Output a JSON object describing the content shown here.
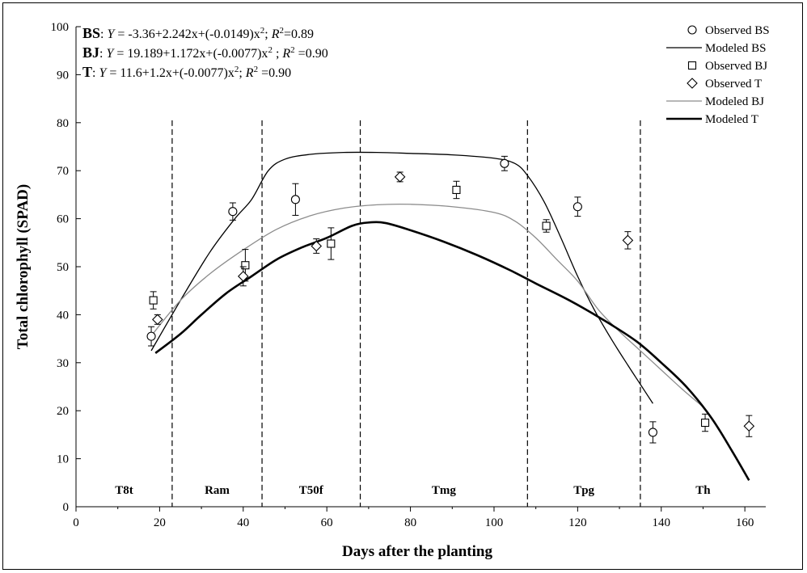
{
  "chart_data": {
    "type": "scatter",
    "xlabel": "Days after the planting",
    "ylabel": "Total chlorophyll  (SPAD)",
    "xlim": [
      0,
      165
    ],
    "ylim": [
      0,
      100
    ],
    "xticks": [
      0,
      20,
      40,
      60,
      80,
      100,
      120,
      140,
      160
    ],
    "yticks": [
      0,
      10,
      20,
      30,
      40,
      50,
      60,
      70,
      80,
      90,
      100
    ],
    "grid": false,
    "legend_position": "top-right",
    "equations": [
      {
        "label": "BS",
        "sep": ":",
        "pre": " ",
        "y": "Y",
        "rhs": " = -3.36+2.242x+(-0.0149)x",
        "sq": "2",
        "mid": ";  ",
        "r": "R",
        "r2": "2",
        "rval": "=0.89"
      },
      {
        "label": "BJ",
        "sep": ":",
        "pre": " ",
        "y": "Y",
        "rhs": " = 19.189+1.172x+(-0.0077)x",
        "sq": "2",
        "mid": "  ; ",
        "r": "R",
        "r2": "2",
        "rval": " =0.90"
      },
      {
        "label": "T",
        "sep": ":",
        "pre": " ",
        "y": "Y",
        "rhs": " = 11.6+1.2x+(-0.0077)x",
        "sq": "2",
        "mid": ";  ",
        "r": "R",
        "r2": "2",
        "rval": " =0.90"
      }
    ],
    "stages": [
      {
        "label": "T8t",
        "start": 0,
        "end": 23
      },
      {
        "label": "Ram",
        "start": 23,
        "end": 44.5
      },
      {
        "label": "T50f",
        "start": 44.5,
        "end": 68
      },
      {
        "label": "Tmg",
        "start": 68,
        "end": 108
      },
      {
        "label": "Tpg",
        "start": 108,
        "end": 135
      },
      {
        "label": "Th",
        "start": 135,
        "end": 165
      }
    ],
    "stage_boundaries": [
      23,
      44.5,
      68,
      108,
      135
    ],
    "series": [
      {
        "name": "Observed BS",
        "kind": "scatter",
        "marker": "circle",
        "points": [
          [
            18,
            35.5,
            2
          ],
          [
            37.5,
            61.5,
            1.8
          ],
          [
            52.5,
            64,
            3.3
          ],
          [
            102.5,
            71.5,
            1.5
          ],
          [
            120,
            62.5,
            2
          ],
          [
            138,
            15.5,
            2.2
          ]
        ]
      },
      {
        "name": "Modeled BS",
        "kind": "line",
        "color": "#000000",
        "width": 1.3,
        "points": [
          [
            18,
            32.5
          ],
          [
            25,
            43
          ],
          [
            32,
            53
          ],
          [
            38,
            60
          ],
          [
            42,
            64
          ],
          [
            46,
            70
          ],
          [
            50,
            72.4
          ],
          [
            56,
            73.4
          ],
          [
            64,
            73.8
          ],
          [
            72,
            73.8
          ],
          [
            80,
            73.6
          ],
          [
            90,
            73.3
          ],
          [
            100,
            72.6
          ],
          [
            105,
            71.5
          ],
          [
            108,
            69
          ],
          [
            112,
            63.5
          ],
          [
            116,
            56
          ],
          [
            120,
            48
          ],
          [
            124,
            41
          ],
          [
            128,
            35
          ],
          [
            132,
            29.5
          ],
          [
            135,
            25.5
          ],
          [
            138,
            21.5
          ]
        ]
      },
      {
        "name": "Observed BJ",
        "kind": "scatter",
        "marker": "square",
        "points": [
          [
            18.5,
            43,
            1.8
          ],
          [
            40.5,
            50.3,
            3.3
          ],
          [
            61,
            54.8,
            3.3
          ],
          [
            91,
            66,
            1.8
          ],
          [
            112.5,
            58.5,
            1.3
          ],
          [
            150.5,
            17.5,
            1.8
          ]
        ]
      },
      {
        "name": "Observed T",
        "kind": "scatter",
        "marker": "diamond",
        "points": [
          [
            19.5,
            39,
            1
          ],
          [
            40,
            48,
            2
          ],
          [
            57.5,
            54.3,
            1.5
          ],
          [
            77.5,
            68.7,
            1
          ],
          [
            132,
            55.5,
            1.8
          ],
          [
            161,
            16.8,
            2.2
          ]
        ]
      },
      {
        "name": "Modeled BJ",
        "kind": "line",
        "color": "#8c8c8c",
        "width": 1.3,
        "points": [
          [
            18,
            35.6
          ],
          [
            25,
            43
          ],
          [
            32,
            48.5
          ],
          [
            40,
            53.5
          ],
          [
            48,
            57.8
          ],
          [
            56,
            60.6
          ],
          [
            64,
            62.2
          ],
          [
            72,
            62.9
          ],
          [
            80,
            63
          ],
          [
            90,
            62.5
          ],
          [
            100,
            61.3
          ],
          [
            105,
            59.5
          ],
          [
            110,
            56
          ],
          [
            115,
            51.5
          ],
          [
            120,
            47
          ],
          [
            125,
            41
          ],
          [
            130,
            36.5
          ],
          [
            135,
            32.5
          ],
          [
            140,
            28.5
          ],
          [
            145,
            24.5
          ],
          [
            150,
            20.8
          ]
        ]
      },
      {
        "name": "Modeled T",
        "kind": "line",
        "color": "#000000",
        "width": 2.6,
        "points": [
          [
            19,
            32
          ],
          [
            25,
            36
          ],
          [
            30,
            40
          ],
          [
            36,
            44.5
          ],
          [
            42,
            48
          ],
          [
            48,
            51.5
          ],
          [
            54,
            54
          ],
          [
            60,
            56
          ],
          [
            66,
            58.5
          ],
          [
            70,
            59.2
          ],
          [
            74,
            59.1
          ],
          [
            80,
            57.6
          ],
          [
            88,
            55.2
          ],
          [
            96,
            52.4
          ],
          [
            104,
            49.2
          ],
          [
            110,
            46.5
          ],
          [
            118,
            43
          ],
          [
            126,
            39
          ],
          [
            134,
            34.5
          ],
          [
            140,
            30
          ],
          [
            146,
            25
          ],
          [
            152,
            18.5
          ],
          [
            157,
            11.5
          ],
          [
            161,
            5.5
          ]
        ]
      }
    ],
    "legend_order": [
      "Observed BS",
      "Modeled BS",
      "Observed BJ",
      "Observed T",
      "Modeled BJ",
      "Modeled T"
    ]
  }
}
